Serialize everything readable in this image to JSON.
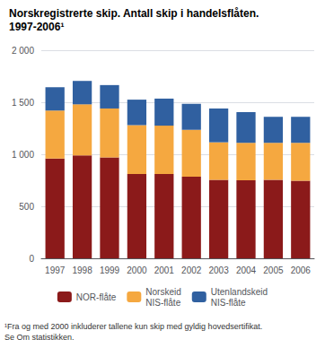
{
  "chart_data": {
    "type": "bar",
    "title": "Norskregistrerte skip. Antall skip i handelsflåten.",
    "subtitle": "1997-2006¹",
    "annotations": [
      "¹Fra og med 2000 inkluderer tallene kun skip med gyldig hovedsertifikat.\nSe Om statistikken."
    ],
    "categories": [
      "1997",
      "1998",
      "1999",
      "2000",
      "2001",
      "2002",
      "2003",
      "2004",
      "2005",
      "2006"
    ],
    "series": [
      {
        "name": "NOR-flåte",
        "color": "#8B1A1A",
        "values": [
          960,
          990,
          970,
          810,
          810,
          785,
          755,
          750,
          755,
          745
        ]
      },
      {
        "name": "Norskeid\nNIS-flåte",
        "color": "#F5A840",
        "values": [
          460,
          490,
          470,
          470,
          465,
          450,
          360,
          360,
          355,
          365
        ]
      },
      {
        "name": "Utenlandskeid\nNIS-flåte",
        "color": "#3060A0",
        "values": [
          225,
          225,
          225,
          245,
          260,
          250,
          325,
          295,
          250,
          250
        ]
      }
    ],
    "stacked": true,
    "ylim": [
      0,
      2000
    ],
    "yticks": [
      0,
      500,
      {
        "value": 1000,
        "label": "1 000"
      },
      {
        "value": 1500,
        "label": "1 500"
      },
      {
        "value": 2000,
        "label": "2 000"
      }
    ],
    "grid": true,
    "legend": "bottom"
  }
}
